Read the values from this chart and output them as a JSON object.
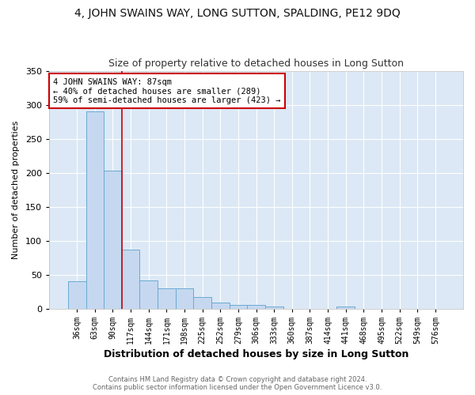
{
  "title": "4, JOHN SWAINS WAY, LONG SUTTON, SPALDING, PE12 9DQ",
  "subtitle": "Size of property relative to detached houses in Long Sutton",
  "xlabel": "Distribution of detached houses by size in Long Sutton",
  "ylabel": "Number of detached properties",
  "footnote1": "Contains HM Land Registry data © Crown copyright and database right 2024.",
  "footnote2": "Contains public sector information licensed under the Open Government Licence v3.0.",
  "bin_labels": [
    "36sqm",
    "63sqm",
    "90sqm",
    "117sqm",
    "144sqm",
    "171sqm",
    "198sqm",
    "225sqm",
    "252sqm",
    "279sqm",
    "306sqm",
    "333sqm",
    "360sqm",
    "387sqm",
    "414sqm",
    "441sqm",
    "468sqm",
    "495sqm",
    "522sqm",
    "549sqm",
    "576sqm"
  ],
  "bar_values": [
    40,
    290,
    203,
    87,
    41,
    30,
    30,
    17,
    9,
    5,
    5,
    3,
    0,
    0,
    0,
    3,
    0,
    0,
    0,
    0,
    0
  ],
  "bar_color": "#c5d8f0",
  "bar_edge_color": "#6aaad4",
  "red_line_index": 2,
  "annotation_title": "4 JOHN SWAINS WAY: 87sqm",
  "annotation_line1": "← 40% of detached houses are smaller (289)",
  "annotation_line2": "59% of semi-detached houses are larger (423) →",
  "annotation_box_color": "#ffffff",
  "annotation_box_edge": "#cc0000",
  "red_line_color": "#cc0000",
  "plot_bg_color": "#dce8f5",
  "fig_bg_color": "#ffffff",
  "ylim": [
    0,
    350
  ],
  "yticks": [
    0,
    50,
    100,
    150,
    200,
    250,
    300,
    350
  ],
  "title_fontsize": 10,
  "subtitle_fontsize": 9,
  "xlabel_fontsize": 9,
  "ylabel_fontsize": 8,
  "footnote_fontsize": 6,
  "tick_fontsize": 7,
  "annotation_fontsize": 7.5
}
